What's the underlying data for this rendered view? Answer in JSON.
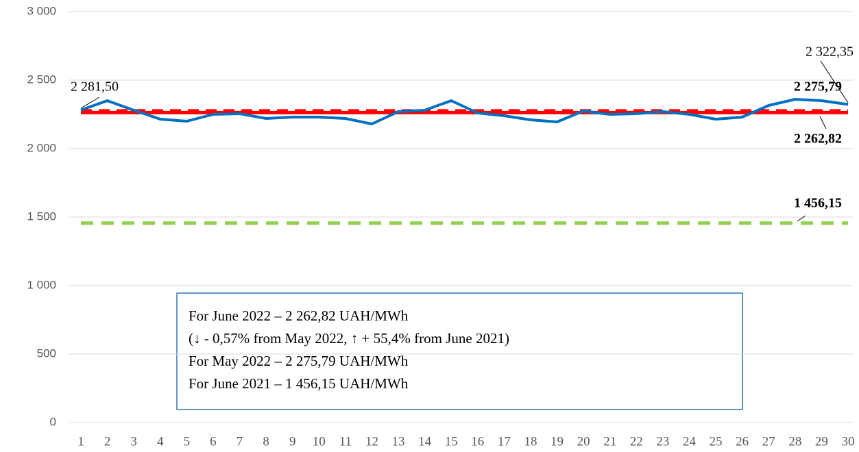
{
  "chart_data": {
    "type": "line",
    "categories": [
      "1",
      "2",
      "3",
      "4",
      "5",
      "6",
      "7",
      "8",
      "9",
      "10",
      "11",
      "12",
      "13",
      "14",
      "15",
      "16",
      "17",
      "18",
      "19",
      "20",
      "21",
      "22",
      "23",
      "24",
      "25",
      "26",
      "27",
      "28",
      "29",
      "30"
    ],
    "series": [
      {
        "color": "#92d050",
        "dash": true,
        "values": [
          1456.15,
          1456.15,
          1456.15,
          1456.15,
          1456.15,
          1456.15,
          1456.15,
          1456.15,
          1456.15,
          1456.15,
          1456.15,
          1456.15,
          1456.15,
          1456.15,
          1456.15,
          1456.15,
          1456.15,
          1456.15,
          1456.15,
          1456.15,
          1456.15,
          1456.15,
          1456.15,
          1456.15,
          1456.15,
          1456.15,
          1456.15,
          1456.15,
          1456.15,
          1456.15
        ],
        "value_labels": [
          null,
          null,
          null,
          null,
          null,
          null,
          null,
          null,
          null,
          null,
          null,
          null,
          null,
          null,
          null,
          null,
          null,
          null,
          null,
          null,
          null,
          null,
          null,
          null,
          null,
          null,
          null,
          null,
          null,
          "1 456,15"
        ]
      },
      {
        "color": "#ff0000",
        "dash": false,
        "values": [
          2262.82,
          2262.82,
          2262.82,
          2262.82,
          2262.82,
          2262.82,
          2262.82,
          2262.82,
          2262.82,
          2262.82,
          2262.82,
          2262.82,
          2262.82,
          2262.82,
          2262.82,
          2262.82,
          2262.82,
          2262.82,
          2262.82,
          2262.82,
          2262.82,
          2262.82,
          2262.82,
          2262.82,
          2262.82,
          2262.82,
          2262.82,
          2262.82,
          2262.82,
          2262.82
        ],
        "value_labels": [
          null,
          null,
          null,
          null,
          null,
          null,
          null,
          null,
          null,
          null,
          null,
          null,
          null,
          null,
          null,
          null,
          null,
          null,
          null,
          null,
          null,
          null,
          null,
          null,
          null,
          null,
          null,
          null,
          null,
          "2 262,82"
        ]
      },
      {
        "color": "#ff0000",
        "dash": true,
        "values": [
          2275.79,
          2275.79,
          2275.79,
          2275.79,
          2275.79,
          2275.79,
          2275.79,
          2275.79,
          2275.79,
          2275.79,
          2275.79,
          2275.79,
          2275.79,
          2275.79,
          2275.79,
          2275.79,
          2275.79,
          2275.79,
          2275.79,
          2275.79,
          2275.79,
          2275.79,
          2275.79,
          2275.79,
          2275.79,
          2275.79,
          2275.79,
          2275.79,
          2275.79,
          2275.79
        ],
        "value_labels": [
          null,
          null,
          null,
          null,
          null,
          null,
          null,
          null,
          null,
          null,
          null,
          null,
          null,
          null,
          null,
          null,
          null,
          null,
          null,
          null,
          null,
          null,
          null,
          null,
          null,
          null,
          null,
          null,
          null,
          "2 275,79"
        ]
      },
      {
        "color": "#0070c0",
        "dash": false,
        "values": [
          2281.5,
          2350,
          2280,
          2215,
          2200,
          2250,
          2255,
          2220,
          2230,
          2230,
          2220,
          2180,
          2270,
          2280,
          2350,
          2260,
          2240,
          2210,
          2195,
          2275,
          2250,
          2255,
          2270,
          2250,
          2215,
          2230,
          2315,
          2360,
          2350,
          2322.35
        ],
        "value_labels": [
          "2 281,50",
          null,
          null,
          null,
          null,
          null,
          null,
          null,
          null,
          null,
          null,
          null,
          null,
          null,
          null,
          null,
          null,
          null,
          null,
          null,
          null,
          null,
          null,
          null,
          null,
          null,
          null,
          null,
          null,
          "2 322,35"
        ]
      }
    ],
    "ylim": [
      0,
      3000
    ],
    "yticks": [
      0,
      500,
      {
        "value": 1000,
        "label": "1 000"
      },
      {
        "value": 1500,
        "label": "1 500"
      },
      {
        "value": 2000,
        "label": "2 000"
      },
      {
        "value": 2500,
        "label": "2 500"
      },
      {
        "value": 3000,
        "label": "3 000"
      }
    ],
    "grid": true,
    "annotations": [
      "For June 2022 – 2 262,82 UAH/MWh",
      "(↓ - 0,57% from May 2022, ↑ + 55,4% from June 2021)",
      "For May 2022 – 2 275,79 UAH/MWh",
      "For June 2021 – 1 456,15 UAH/MWh"
    ]
  }
}
